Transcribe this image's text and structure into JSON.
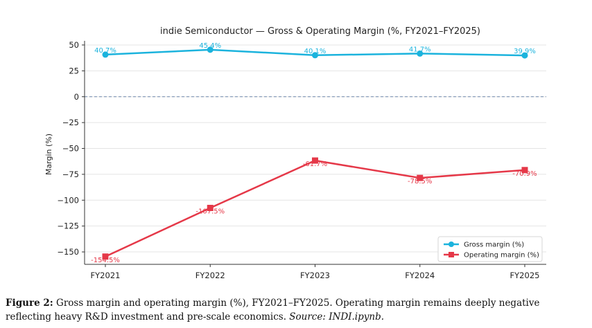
{
  "chart_data": {
    "type": "line",
    "title": "indie Semiconductor — Gross & Operating Margin (%, FY2021–FY2025)",
    "xlabel": "",
    "ylabel": "Margin (%)",
    "categories": [
      "FY2021",
      "FY2022",
      "FY2023",
      "FY2024",
      "FY2025"
    ],
    "ylim": [
      -162,
      54
    ],
    "yticks": [
      50,
      25,
      0,
      -25,
      -50,
      -75,
      -100,
      -125,
      -150
    ],
    "ytick_labels": [
      "50",
      "25",
      "0",
      "−25",
      "−50",
      "−75",
      "−100",
      "−125",
      "−150"
    ],
    "grid": true,
    "zero_line": true,
    "legend_position": "lower-right",
    "series": [
      {
        "name": "Gross margin (%)",
        "color": "#1bb3dd",
        "marker": "circle",
        "values": [
          40.7,
          45.4,
          40.1,
          41.7,
          39.9
        ],
        "labels": [
          "40.7%",
          "45.4%",
          "40.1%",
          "41.7%",
          "39.9%"
        ]
      },
      {
        "name": "Operating margin (%)",
        "color": "#e53848",
        "marker": "square",
        "values": [
          -154.5,
          -107.5,
          -61.7,
          -78.5,
          -70.9
        ],
        "labels": [
          "-154.5%",
          "-107.5%",
          "-61.7%",
          "-78.5%",
          "-70.9%"
        ]
      }
    ]
  },
  "caption": {
    "label": "Figure 2:",
    "line1": "Gross margin and operating margin (%), FY2021–FY2025. Operating margin remains deeply negative",
    "line2": "reflecting heavy R&D investment and pre-scale economics.",
    "source": "Source: INDI.ipynb."
  }
}
